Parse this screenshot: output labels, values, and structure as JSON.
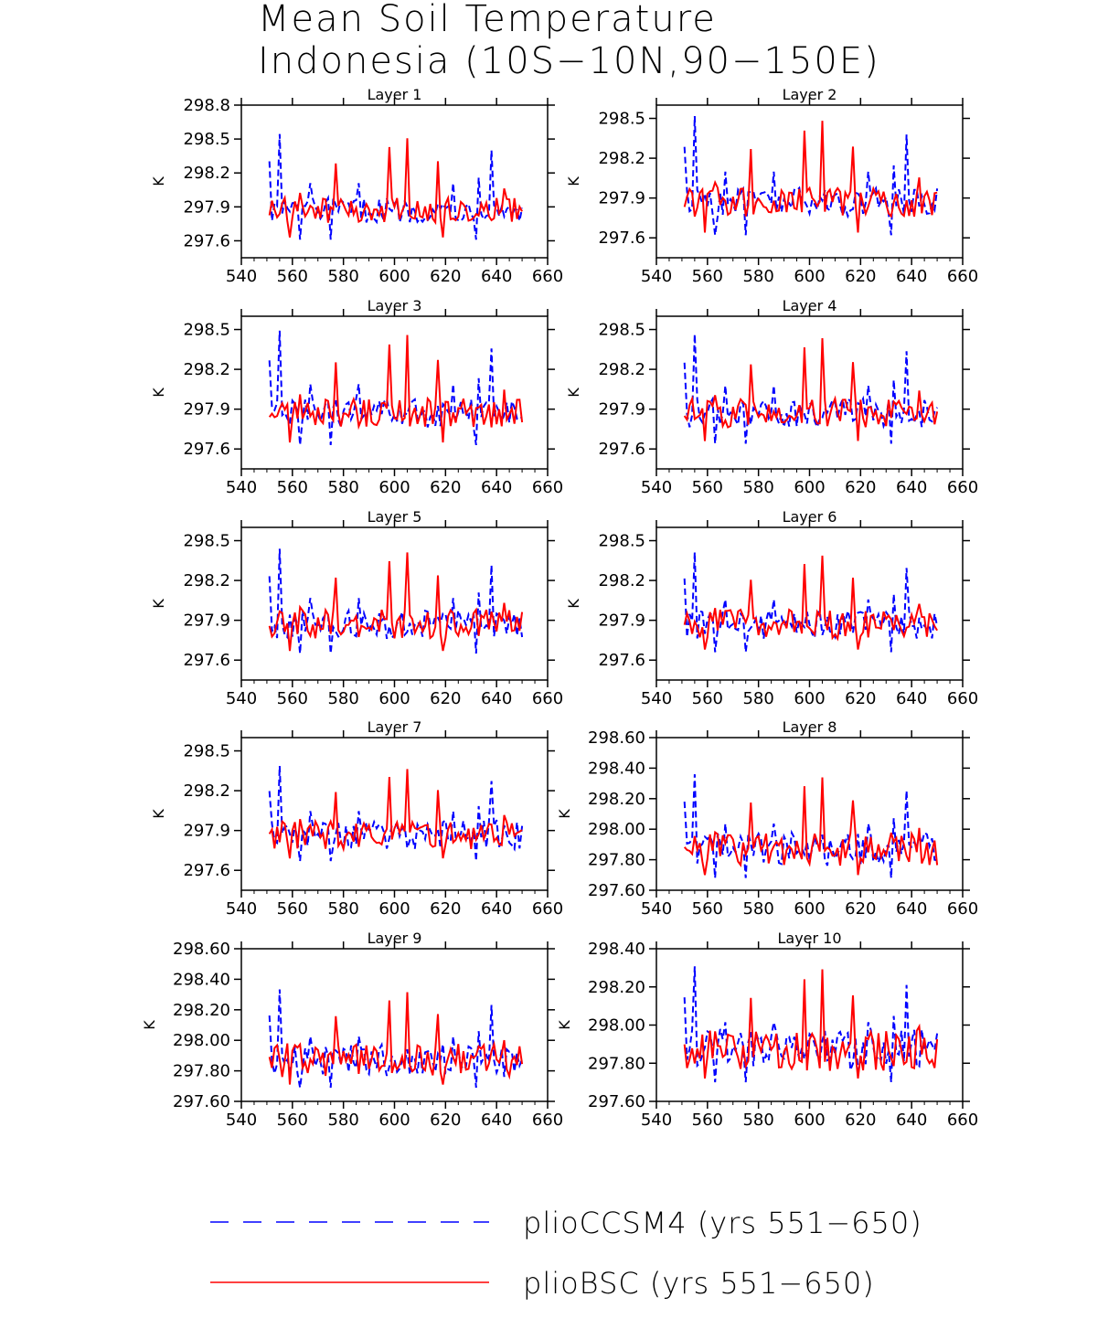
{
  "figure": {
    "title_line1": "Mean Soil Temperature",
    "title_line2": "Indonesia (10S−10N,90−150E)"
  },
  "colors": {
    "pliocsm4": "#0000ff",
    "pliobsc": "#ff0000",
    "axis": "#000000"
  },
  "legend": {
    "items": [
      {
        "label": "plioCCSM4 (yrs 551−650)",
        "style": "dashed",
        "color": "#0000ff"
      },
      {
        "label": "plioBSC (yrs 551−650)",
        "style": "solid",
        "color": "#ff0000"
      }
    ]
  },
  "chart_data": [
    {
      "type": "line",
      "title": "Layer 1",
      "ylabel": "K",
      "xlim": [
        540,
        660
      ],
      "ylim": [
        297.45,
        298.8
      ],
      "xticks": [
        "540",
        "560",
        "580",
        "600",
        "620",
        "640",
        "660"
      ],
      "yticks": [
        "297.6",
        "297.9",
        "298.2",
        "298.5",
        "298.8"
      ],
      "ytick_values": [
        297.6,
        297.9,
        298.2,
        298.5,
        298.8
      ],
      "x_start": 551,
      "x_end": 650,
      "series": [
        {
          "name": "plioCCSM4"
        },
        {
          "name": "plioBSC"
        }
      ]
    },
    {
      "type": "line",
      "title": "Layer 2",
      "ylabel": "K",
      "xlim": [
        540,
        660
      ],
      "ylim": [
        297.45,
        298.6
      ],
      "xticks": [
        "540",
        "560",
        "580",
        "600",
        "620",
        "640",
        "660"
      ],
      "yticks": [
        "297.6",
        "297.9",
        "298.2",
        "298.5"
      ],
      "ytick_values": [
        297.6,
        297.9,
        298.2,
        298.5
      ],
      "x_start": 551,
      "x_end": 650,
      "series": [
        {
          "name": "plioCCSM4"
        },
        {
          "name": "plioBSC"
        }
      ]
    },
    {
      "type": "line",
      "title": "Layer 3",
      "ylabel": "K",
      "xlim": [
        540,
        660
      ],
      "ylim": [
        297.45,
        298.6
      ],
      "xticks": [
        "540",
        "560",
        "580",
        "600",
        "620",
        "640",
        "660"
      ],
      "yticks": [
        "297.6",
        "297.9",
        "298.2",
        "298.5"
      ],
      "ytick_values": [
        297.6,
        297.9,
        298.2,
        298.5
      ],
      "x_start": 551,
      "x_end": 650,
      "series": [
        {
          "name": "plioCCSM4"
        },
        {
          "name": "plioBSC"
        }
      ]
    },
    {
      "type": "line",
      "title": "Layer 4",
      "ylabel": "K",
      "xlim": [
        540,
        660
      ],
      "ylim": [
        297.45,
        298.6
      ],
      "xticks": [
        "540",
        "560",
        "580",
        "600",
        "620",
        "640",
        "660"
      ],
      "yticks": [
        "297.6",
        "297.9",
        "298.2",
        "298.5"
      ],
      "ytick_values": [
        297.6,
        297.9,
        298.2,
        298.5
      ],
      "x_start": 551,
      "x_end": 650,
      "series": [
        {
          "name": "plioCCSM4"
        },
        {
          "name": "plioBSC"
        }
      ]
    },
    {
      "type": "line",
      "title": "Layer 5",
      "ylabel": "K",
      "xlim": [
        540,
        660
      ],
      "ylim": [
        297.45,
        298.6
      ],
      "xticks": [
        "540",
        "560",
        "580",
        "600",
        "620",
        "640",
        "660"
      ],
      "yticks": [
        "297.6",
        "297.9",
        "298.2",
        "298.5"
      ],
      "ytick_values": [
        297.6,
        297.9,
        298.2,
        298.5
      ],
      "x_start": 551,
      "x_end": 650,
      "series": [
        {
          "name": "plioCCSM4"
        },
        {
          "name": "plioBSC"
        }
      ]
    },
    {
      "type": "line",
      "title": "Layer 6",
      "ylabel": "K",
      "xlim": [
        540,
        660
      ],
      "ylim": [
        297.45,
        298.6
      ],
      "xticks": [
        "540",
        "560",
        "580",
        "600",
        "620",
        "640",
        "660"
      ],
      "yticks": [
        "297.6",
        "297.9",
        "298.2",
        "298.5"
      ],
      "ytick_values": [
        297.6,
        297.9,
        298.2,
        298.5
      ],
      "x_start": 551,
      "x_end": 650,
      "series": [
        {
          "name": "plioCCSM4"
        },
        {
          "name": "plioBSC"
        }
      ]
    },
    {
      "type": "line",
      "title": "Layer 7",
      "ylabel": "K",
      "xlim": [
        540,
        660
      ],
      "ylim": [
        297.45,
        298.6
      ],
      "xticks": [
        "540",
        "560",
        "580",
        "600",
        "620",
        "640",
        "660"
      ],
      "yticks": [
        "297.6",
        "297.9",
        "298.2",
        "298.5"
      ],
      "ytick_values": [
        297.6,
        297.9,
        298.2,
        298.5
      ],
      "x_start": 551,
      "x_end": 650,
      "series": [
        {
          "name": "plioCCSM4"
        },
        {
          "name": "plioBSC"
        }
      ]
    },
    {
      "type": "line",
      "title": "Layer 8",
      "ylabel": "K",
      "xlim": [
        540,
        660
      ],
      "ylim": [
        297.6,
        298.6
      ],
      "xticks": [
        "540",
        "560",
        "580",
        "600",
        "620",
        "640",
        "660"
      ],
      "yticks": [
        "297.60",
        "297.80",
        "298.00",
        "298.20",
        "298.40",
        "298.60"
      ],
      "ytick_values": [
        297.6,
        297.8,
        298.0,
        298.2,
        298.4,
        298.6
      ],
      "x_start": 551,
      "x_end": 650,
      "series": [
        {
          "name": "plioCCSM4"
        },
        {
          "name": "plioBSC"
        }
      ]
    },
    {
      "type": "line",
      "title": "Layer 9",
      "ylabel": "K",
      "xlim": [
        540,
        660
      ],
      "ylim": [
        297.6,
        298.6
      ],
      "xticks": [
        "540",
        "560",
        "580",
        "600",
        "620",
        "640",
        "660"
      ],
      "yticks": [
        "297.60",
        "297.80",
        "298.00",
        "298.20",
        "298.40",
        "298.60"
      ],
      "ytick_values": [
        297.6,
        297.8,
        298.0,
        298.2,
        298.4,
        298.6
      ],
      "x_start": 551,
      "x_end": 650,
      "series": [
        {
          "name": "plioCCSM4"
        },
        {
          "name": "plioBSC"
        }
      ]
    },
    {
      "type": "line",
      "title": "Layer 10",
      "ylabel": "K",
      "xlim": [
        540,
        660
      ],
      "ylim": [
        297.6,
        298.4
      ],
      "xticks": [
        "540",
        "560",
        "580",
        "600",
        "620",
        "640",
        "660"
      ],
      "yticks": [
        "297.60",
        "297.80",
        "298.00",
        "298.20",
        "298.40"
      ],
      "ytick_values": [
        297.6,
        297.8,
        298.0,
        298.2,
        298.4
      ],
      "x_start": 551,
      "x_end": 650,
      "series": [
        {
          "name": "plioCCSM4"
        },
        {
          "name": "plioBSC"
        }
      ]
    }
  ]
}
